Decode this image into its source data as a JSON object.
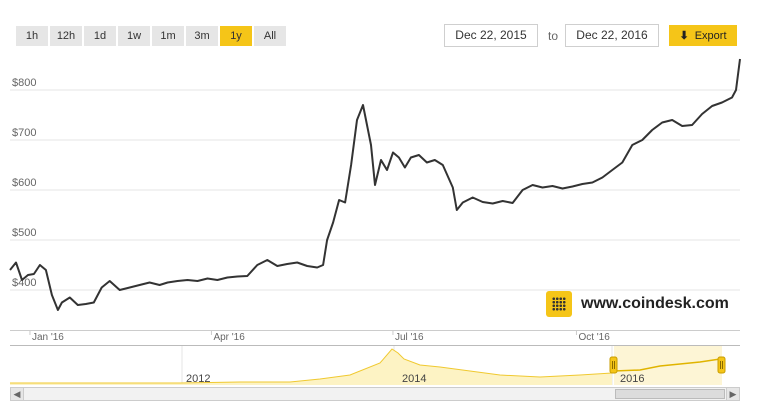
{
  "range_selector": {
    "buttons": [
      "1h",
      "12h",
      "1d",
      "1w",
      "1m",
      "3m",
      "1y",
      "All"
    ],
    "active": "1y"
  },
  "date_range": {
    "from": "Dec 22, 2015",
    "to_label": "to",
    "to": "Dec 22, 2016"
  },
  "export": {
    "label": "Export",
    "icon": "download-arrow-icon"
  },
  "watermark": {
    "text": "www.coindesk.com",
    "icon": "coindesk-logo-icon"
  },
  "colors": {
    "line": "#333333",
    "accent": "#f5c518",
    "navigator_fill": "#fdf3c4",
    "navigator_line": "#f0c930"
  },
  "navigator": {
    "year_labels": [
      "2012",
      "2014",
      "2016"
    ]
  },
  "chart_data": {
    "type": "line",
    "title": "",
    "xlabel": "",
    "ylabel": "",
    "ylim": [
      330,
      870
    ],
    "y_ticks": [
      400,
      500,
      600,
      700,
      800
    ],
    "y_tick_labels": [
      "$400",
      "$500",
      "$600",
      "$700",
      "$800"
    ],
    "x_ticks": [
      "2016-01-01",
      "2016-04-01",
      "2016-07-01",
      "2016-10-01"
    ],
    "x_tick_labels": [
      "Jan '16",
      "Apr '16",
      "Jul '16",
      "Oct '16"
    ],
    "xlim": [
      "2015-12-22",
      "2016-12-22"
    ],
    "grid": true,
    "series": [
      {
        "x": [
          "2015-12-22",
          "2015-12-25",
          "2015-12-28",
          "2015-12-31",
          "2016-01-03",
          "2016-01-06",
          "2016-01-09",
          "2016-01-12",
          "2016-01-15",
          "2016-01-17",
          "2016-01-21",
          "2016-01-25",
          "2016-01-29",
          "2016-02-02",
          "2016-02-06",
          "2016-02-10",
          "2016-02-15",
          "2016-02-20",
          "2016-02-25",
          "2016-03-01",
          "2016-03-06",
          "2016-03-10",
          "2016-03-15",
          "2016-03-20",
          "2016-03-25",
          "2016-03-30",
          "2016-04-04",
          "2016-04-09",
          "2016-04-14",
          "2016-04-19",
          "2016-04-24",
          "2016-04-29",
          "2016-05-04",
          "2016-05-09",
          "2016-05-14",
          "2016-05-19",
          "2016-05-24",
          "2016-05-27",
          "2016-05-29",
          "2016-06-01",
          "2016-06-04",
          "2016-06-07",
          "2016-06-10",
          "2016-06-13",
          "2016-06-16",
          "2016-06-18",
          "2016-06-20",
          "2016-06-22",
          "2016-06-25",
          "2016-06-28",
          "2016-07-01",
          "2016-07-04",
          "2016-07-07",
          "2016-07-10",
          "2016-07-14",
          "2016-07-18",
          "2016-07-22",
          "2016-07-26",
          "2016-07-31",
          "2016-08-02",
          "2016-08-05",
          "2016-08-10",
          "2016-08-15",
          "2016-08-20",
          "2016-08-25",
          "2016-08-30",
          "2016-09-04",
          "2016-09-09",
          "2016-09-14",
          "2016-09-19",
          "2016-09-24",
          "2016-09-29",
          "2016-10-04",
          "2016-10-09",
          "2016-10-14",
          "2016-10-19",
          "2016-10-24",
          "2016-10-29",
          "2016-11-03",
          "2016-11-08",
          "2016-11-13",
          "2016-11-18",
          "2016-11-23",
          "2016-11-28",
          "2016-12-03",
          "2016-12-08",
          "2016-12-13",
          "2016-12-18",
          "2016-12-20",
          "2016-12-22"
        ],
        "y": [
          440,
          455,
          420,
          430,
          432,
          450,
          440,
          390,
          360,
          375,
          385,
          370,
          372,
          375,
          405,
          418,
          400,
          405,
          410,
          415,
          410,
          415,
          418,
          420,
          418,
          423,
          420,
          425,
          427,
          428,
          450,
          460,
          448,
          452,
          455,
          448,
          445,
          450,
          500,
          535,
          580,
          575,
          650,
          740,
          770,
          730,
          690,
          610,
          660,
          640,
          675,
          665,
          645,
          665,
          670,
          655,
          660,
          650,
          605,
          560,
          575,
          585,
          576,
          573,
          578,
          574,
          600,
          610,
          605,
          608,
          603,
          607,
          612,
          615,
          625,
          640,
          655,
          690,
          700,
          720,
          735,
          740,
          728,
          730,
          752,
          768,
          775,
          785,
          800,
          862
        ]
      }
    ]
  }
}
